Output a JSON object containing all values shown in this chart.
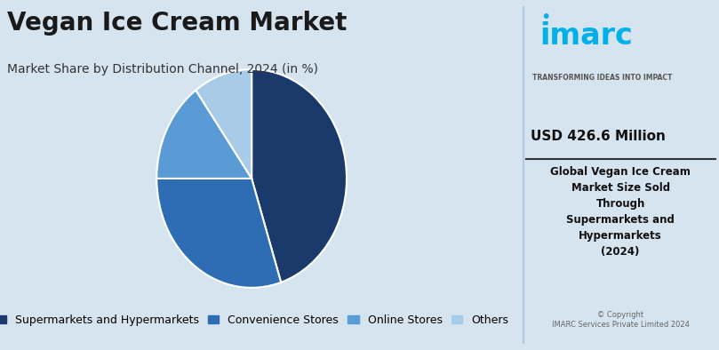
{
  "title": "Vegan Ice Cream Market",
  "subtitle": "Market Share by Distribution Channel, 2024 (in %)",
  "slices": [
    45.0,
    30.0,
    15.0,
    10.0
  ],
  "labels": [
    "Supermarkets and Hypermarkets",
    "Convenience Stores",
    "Online Stores",
    "Others"
  ],
  "colors": [
    "#1a3a6b",
    "#2e6db4",
    "#5b9bd5",
    "#a8cce8"
  ],
  "startangle": 90,
  "background_color": "#d6e4f0",
  "right_panel_bg": "#e8f2fb",
  "usd_text": "USD 426.6 Million",
  "desc_text": "Global Vegan Ice Cream\nMarket Size Sold\nThrough\nSupermarkets and\nHypermarkets\n(2024)",
  "copyright_text": "© Copyright\nIMARC Services Private Limited 2024",
  "imarc_tagline": "TRANSFORMING IDEAS INTO IMPACT",
  "title_fontsize": 20,
  "subtitle_fontsize": 10,
  "legend_fontsize": 9
}
